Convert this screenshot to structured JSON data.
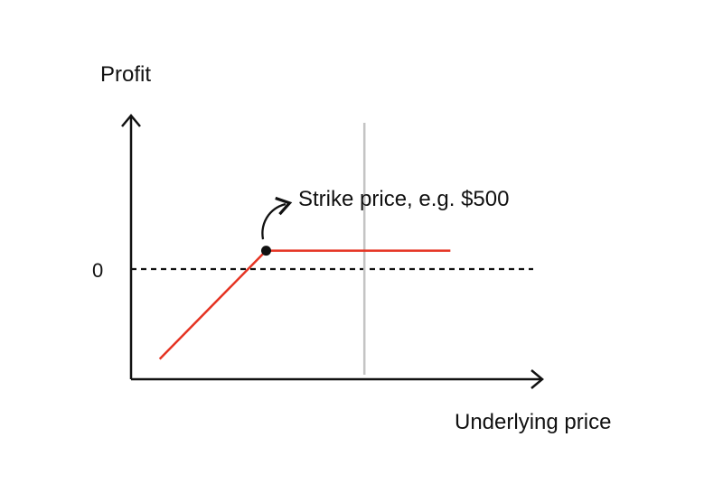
{
  "chart_data": {
    "type": "line",
    "ylabel": "Profit",
    "xlabel": "Underlying price",
    "y_ticks": [
      {
        "value": 0,
        "label": "0"
      }
    ],
    "xlim": [
      0,
      100
    ],
    "ylim": [
      -100,
      100
    ],
    "series": [
      {
        "values": [
          [
            7,
            -83
          ],
          [
            33,
            17
          ],
          [
            78,
            17
          ]
        ],
        "color": "#e53322"
      }
    ],
    "zero_line": {
      "y": 0,
      "style": "dashed",
      "color": "#111111"
    },
    "vertical_marker": {
      "x": 57,
      "color": "#c4c4c4"
    },
    "key_point": {
      "x": 33,
      "y": 17
    },
    "annotation": {
      "text": "Strike price, e.g. $500"
    },
    "grid": false,
    "legend": "none"
  },
  "colors": {
    "axis": "#111111",
    "payoff": "#e53322",
    "marker": "#c4c4c4"
  }
}
